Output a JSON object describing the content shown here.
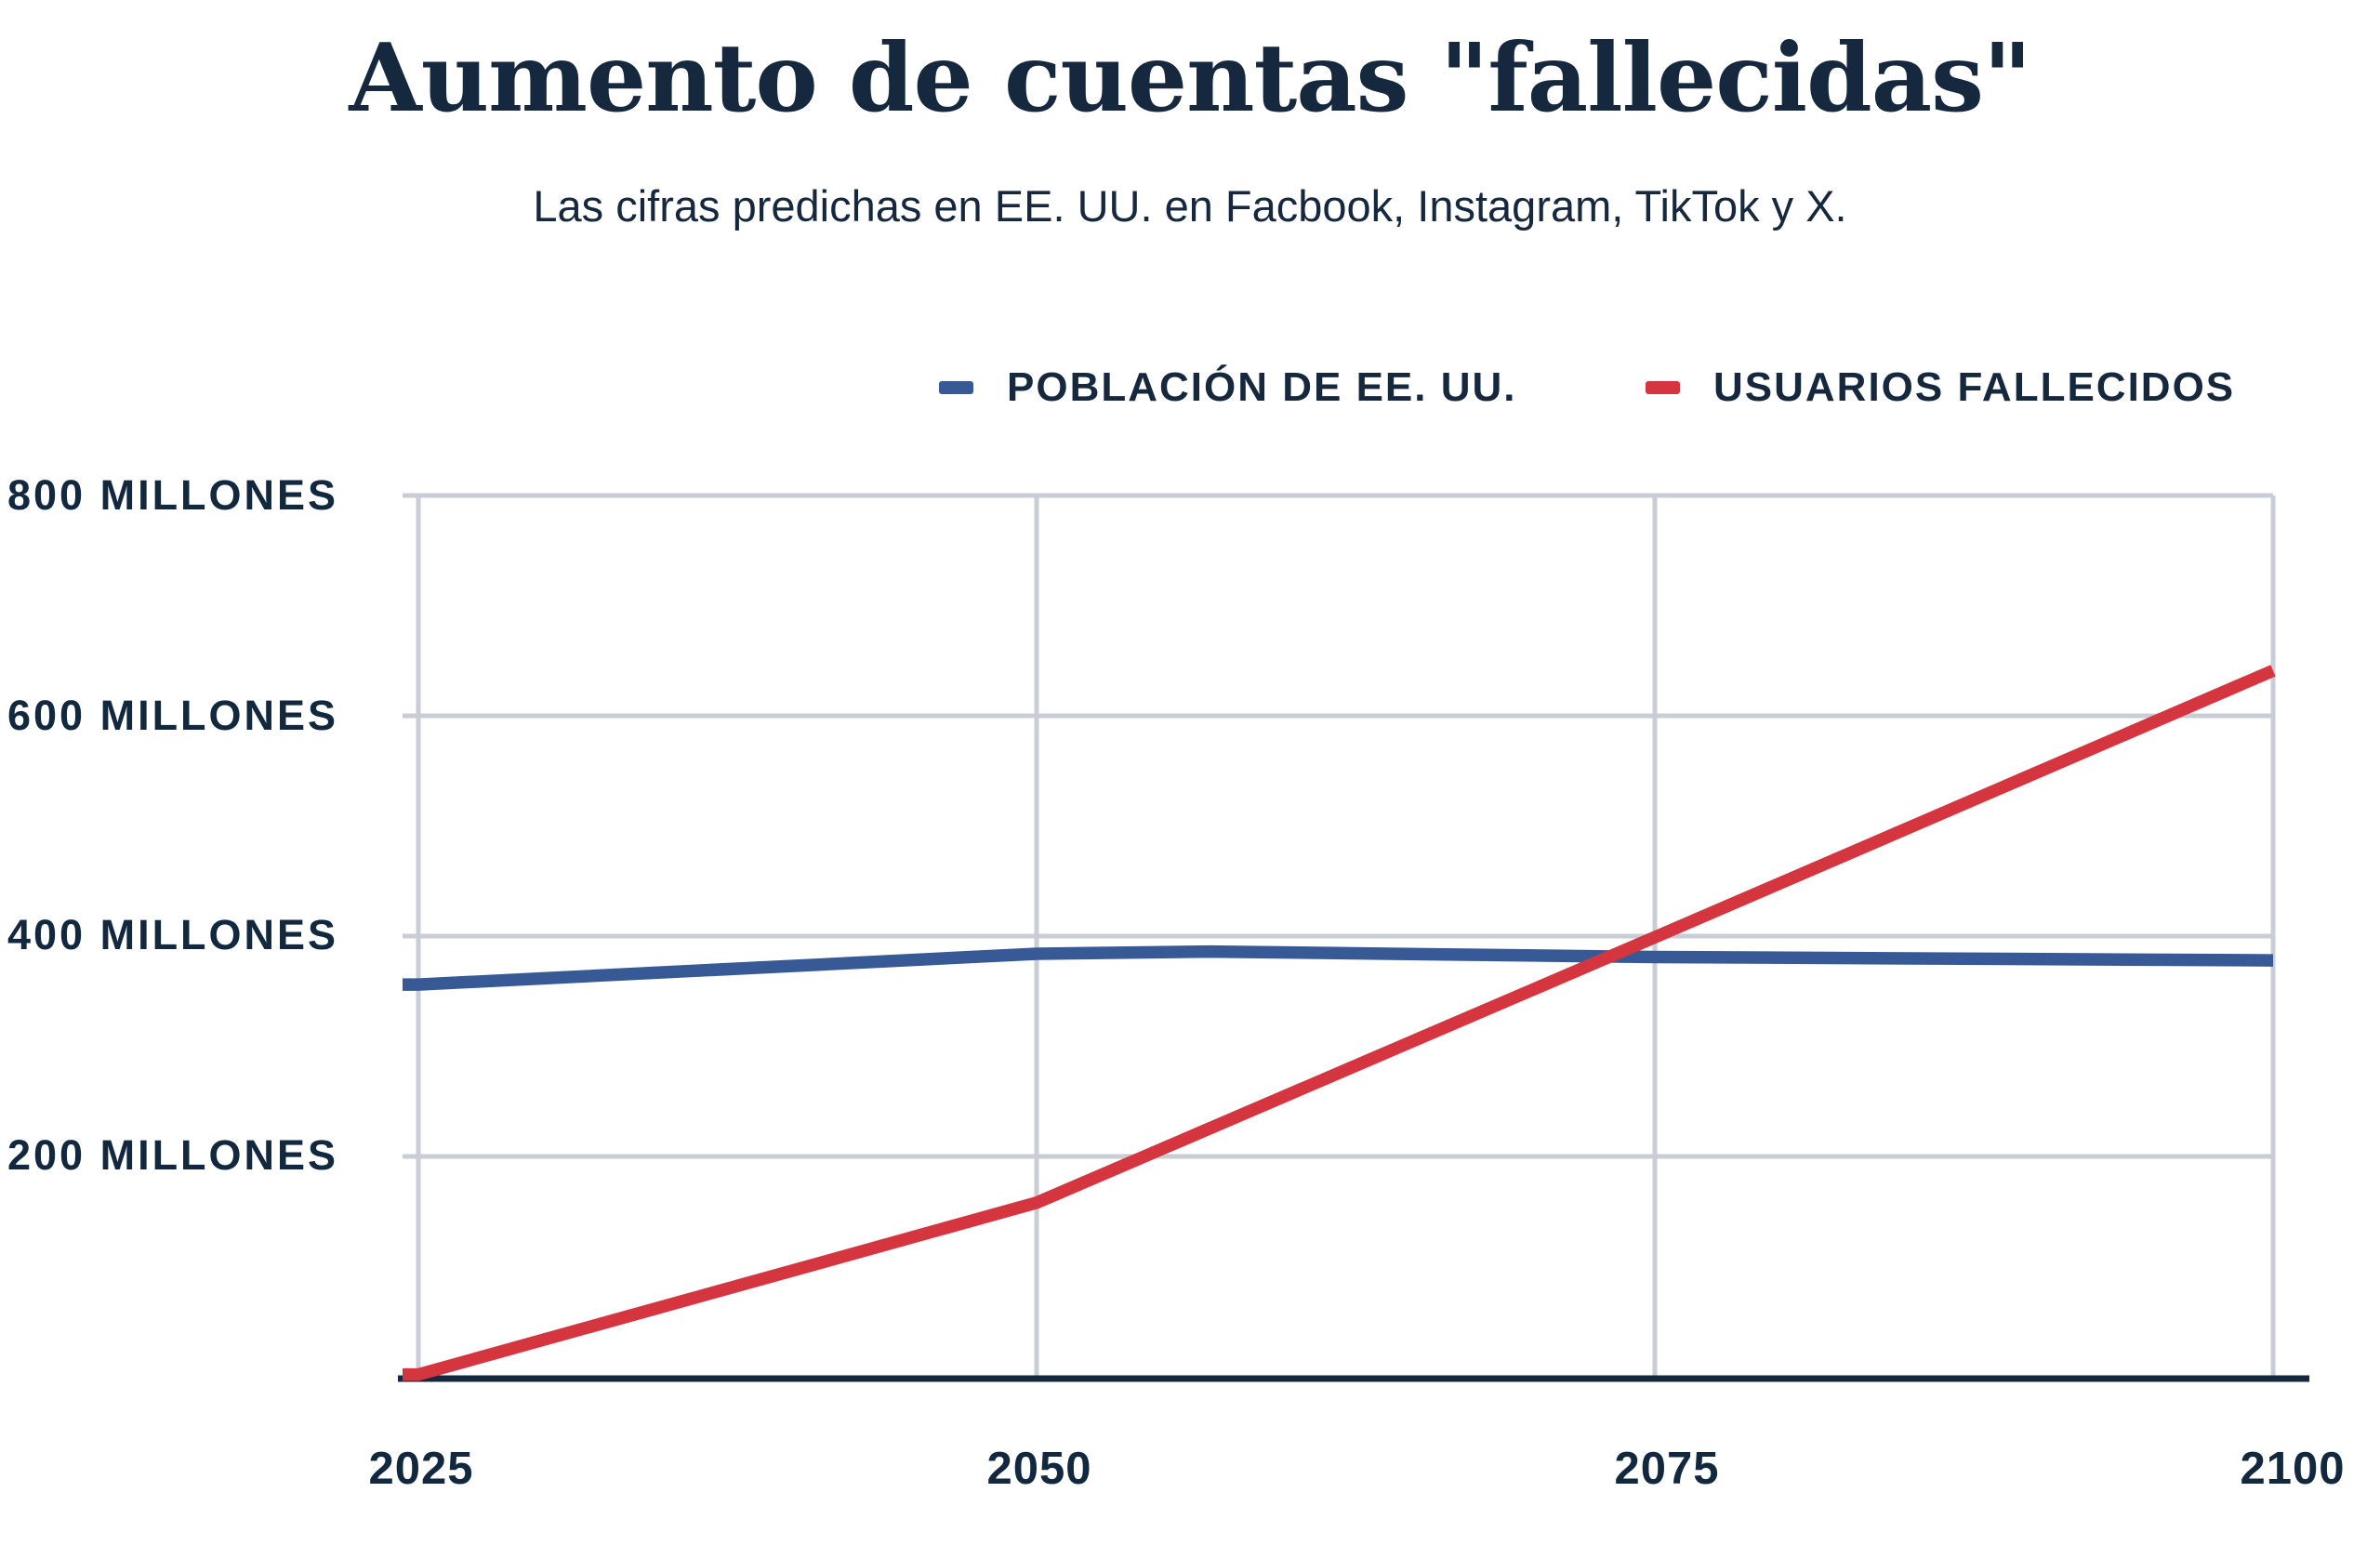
{
  "title": "Aumento de cuentas \"fallecidas\"",
  "subtitle": "Las cifras predichas en EE. UU. en Facbook, Instagram, TikTok y X.",
  "colors": {
    "text": "#15283e",
    "grid": "#c9ced6",
    "axis": "#15283e",
    "background": "#ffffff",
    "population_blue": "#375a96",
    "deceased_red": "#d5353f"
  },
  "legend": {
    "items": [
      {
        "label": "POBLACIÓN DE EE. UU.",
        "color": "#375a96"
      },
      {
        "label": "USUARIOS FALLECIDOS",
        "color": "#d5353f"
      }
    ]
  },
  "axes": {
    "x": {
      "tick_labels": [
        "2025",
        "2050",
        "2075",
        "2100"
      ]
    },
    "y": {
      "tick_labels": [
        "800 MILLONES",
        "600 MILLONES",
        "400 MILLONES",
        "200 MILLONES"
      ]
    }
  },
  "chart_data": {
    "type": "line",
    "title": "Aumento de cuentas \"fallecidas\"",
    "subtitle": "Las cifras predichas en EE. UU. en Facbook, Instagram, TikTok y X.",
    "xlabel": "",
    "ylabel": "",
    "xlim": [
      2025,
      2100
    ],
    "ylim": [
      0,
      800
    ],
    "x_ticks": [
      2025,
      2050,
      2075,
      2100
    ],
    "y_ticks": [
      200,
      400,
      600,
      800
    ],
    "y_tick_unit": "MILLONES",
    "grid": true,
    "legend_position": "top",
    "series": [
      {
        "name": "POBLACIÓN DE EE. UU.",
        "color": "#375a96",
        "points": [
          {
            "x": 2025,
            "y": 356
          },
          {
            "x": 2050,
            "y": 384
          },
          {
            "x": 2057,
            "y": 386
          },
          {
            "x": 2075,
            "y": 381
          },
          {
            "x": 2100,
            "y": 378
          }
        ]
      },
      {
        "name": "USUARIOS FALLECIDOS",
        "color": "#d5353f",
        "points": [
          {
            "x": 2025,
            "y": 2
          },
          {
            "x": 2050,
            "y": 158
          },
          {
            "x": 2075,
            "y": 399
          },
          {
            "x": 2100,
            "y": 641
          }
        ]
      }
    ]
  }
}
